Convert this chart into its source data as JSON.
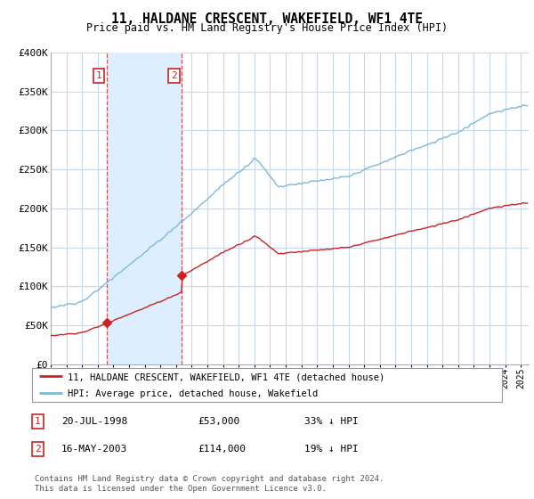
{
  "title": "11, HALDANE CRESCENT, WAKEFIELD, WF1 4TE",
  "subtitle": "Price paid vs. HM Land Registry's House Price Index (HPI)",
  "ylim": [
    0,
    400000
  ],
  "yticks": [
    0,
    50000,
    100000,
    150000,
    200000,
    250000,
    300000,
    350000,
    400000
  ],
  "ytick_labels": [
    "£0",
    "£50K",
    "£100K",
    "£150K",
    "£200K",
    "£250K",
    "£300K",
    "£350K",
    "£400K"
  ],
  "background_color": "#ffffff",
  "plot_bg_color": "#ffffff",
  "grid_color": "#c8d8e8",
  "hpi_color": "#7fb8d8",
  "price_color": "#cc2222",
  "sale1_date": 1998.55,
  "sale1_price": 53000,
  "sale2_date": 2003.37,
  "sale2_price": 114000,
  "span_color": "#ddeeff",
  "legend_entries": [
    "11, HALDANE CRESCENT, WAKEFIELD, WF1 4TE (detached house)",
    "HPI: Average price, detached house, Wakefield"
  ],
  "table_rows": [
    [
      "1",
      "20-JUL-1998",
      "£53,000",
      "33% ↓ HPI"
    ],
    [
      "2",
      "16-MAY-2003",
      "£114,000",
      "19% ↓ HPI"
    ]
  ],
  "footer": "Contains HM Land Registry data © Crown copyright and database right 2024.\nThis data is licensed under the Open Government Licence v3.0.",
  "xmin": 1995.0,
  "xmax": 2025.5
}
